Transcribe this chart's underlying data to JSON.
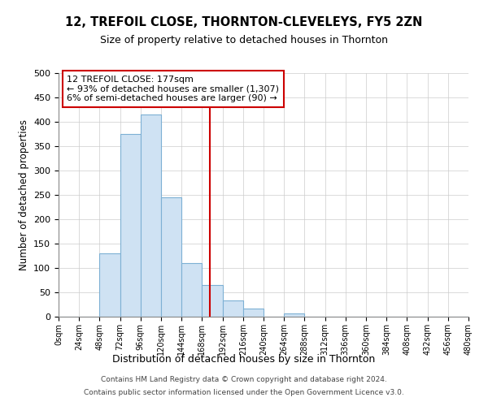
{
  "title": "12, TREFOIL CLOSE, THORNTON-CLEVELEYS, FY5 2ZN",
  "subtitle": "Size of property relative to detached houses in Thornton",
  "xlabel": "Distribution of detached houses by size in Thornton",
  "ylabel": "Number of detached properties",
  "bar_color": "#cfe2f3",
  "bar_edge_color": "#7db0d4",
  "bin_edges": [
    0,
    24,
    48,
    72,
    96,
    120,
    144,
    168,
    192,
    216,
    240,
    264,
    288,
    312,
    336,
    360,
    384,
    408,
    432,
    456,
    480
  ],
  "bar_heights": [
    0,
    0,
    130,
    375,
    415,
    245,
    110,
    65,
    33,
    17,
    0,
    6,
    0,
    0,
    0,
    0,
    0,
    0,
    0,
    0
  ],
  "tick_labels": [
    "0sqm",
    "24sqm",
    "48sqm",
    "72sqm",
    "96sqm",
    "120sqm",
    "144sqm",
    "168sqm",
    "192sqm",
    "216sqm",
    "240sqm",
    "264sqm",
    "288sqm",
    "312sqm",
    "336sqm",
    "360sqm",
    "384sqm",
    "408sqm",
    "432sqm",
    "456sqm",
    "480sqm"
  ],
  "ylim": [
    0,
    500
  ],
  "yticks": [
    0,
    50,
    100,
    150,
    200,
    250,
    300,
    350,
    400,
    450,
    500
  ],
  "vline_x": 177,
  "vline_color": "#cc0000",
  "annotation_title": "12 TREFOIL CLOSE: 177sqm",
  "annotation_line1": "← 93% of detached houses are smaller (1,307)",
  "annotation_line2": "6% of semi-detached houses are larger (90) →",
  "annotation_box_color": "#cc0000",
  "annotation_box_fill": "#ffffff",
  "footer_line1": "Contains HM Land Registry data © Crown copyright and database right 2024.",
  "footer_line2": "Contains public sector information licensed under the Open Government Licence v3.0.",
  "background_color": "#ffffff",
  "grid_color": "#cccccc"
}
